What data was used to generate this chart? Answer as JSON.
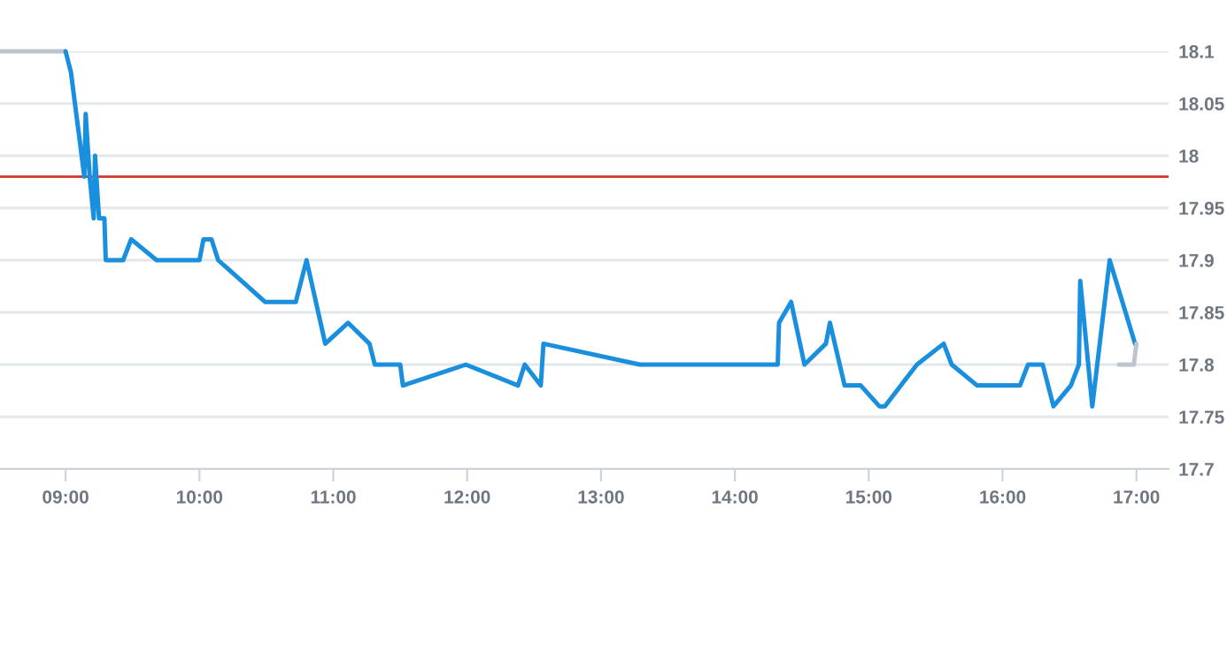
{
  "chart_data": {
    "type": "line",
    "series": [
      {
        "color": "#bcc5cf",
        "x": [
          8.51,
          9.0
        ],
        "values": [
          18.1,
          18.1
        ]
      },
      {
        "color": "#1a8fdd",
        "x": [
          9.0,
          9.04,
          9.14,
          9.15,
          9.18,
          9.21,
          9.22,
          9.25,
          9.29,
          9.3,
          9.43,
          9.49,
          9.68,
          10.0,
          10.03,
          10.09,
          10.14,
          10.49,
          10.72,
          10.8,
          10.94,
          11.11,
          11.27,
          11.31,
          11.5,
          11.52,
          11.99,
          12.38,
          12.43,
          12.55,
          12.57,
          13.29,
          14.32,
          14.33,
          14.42,
          14.52,
          14.68,
          14.71,
          14.82,
          14.94,
          15.08,
          15.12,
          15.36,
          15.56,
          15.62,
          15.81,
          16.13,
          16.19,
          16.3,
          16.38,
          16.51,
          16.57,
          16.58,
          16.67,
          16.8,
          16.99
        ],
        "values": [
          18.1,
          18.08,
          17.98,
          18.04,
          17.98,
          17.94,
          18.0,
          17.94,
          17.94,
          17.9,
          17.9,
          17.92,
          17.9,
          17.9,
          17.92,
          17.92,
          17.9,
          17.86,
          17.86,
          17.9,
          17.82,
          17.84,
          17.82,
          17.8,
          17.8,
          17.78,
          17.8,
          17.78,
          17.8,
          17.78,
          17.82,
          17.8,
          17.8,
          17.84,
          17.86,
          17.8,
          17.82,
          17.84,
          17.78,
          17.78,
          17.76,
          17.76,
          17.8,
          17.82,
          17.8,
          17.78,
          17.78,
          17.8,
          17.8,
          17.76,
          17.78,
          17.8,
          17.88,
          17.76,
          17.9,
          17.82
        ]
      },
      {
        "color": "#bcc5cf",
        "x": [
          16.87,
          16.98,
          17.0
        ],
        "values": [
          17.8,
          17.8,
          17.82
        ]
      }
    ],
    "ref_lines": [
      {
        "axis": "y",
        "value": 17.98,
        "color": "#d9312a"
      }
    ],
    "xlim": [
      8.51,
      17.24
    ],
    "xticks": [
      {
        "value": 9,
        "label": "09:00"
      },
      {
        "value": 10,
        "label": "10:00"
      },
      {
        "value": 11,
        "label": "11:00"
      },
      {
        "value": 12,
        "label": "12:00"
      },
      {
        "value": 13,
        "label": "13:00"
      },
      {
        "value": 14,
        "label": "14:00"
      },
      {
        "value": 15,
        "label": "15:00"
      },
      {
        "value": 16,
        "label": "16:00"
      },
      {
        "value": 17,
        "label": "17:00"
      }
    ],
    "ylim": [
      17.7,
      18.1
    ],
    "yticks": [
      17.7,
      17.75,
      17.8,
      17.85,
      17.9,
      17.95,
      18,
      18.05,
      18.1
    ],
    "grid": "y",
    "legend": false
  }
}
